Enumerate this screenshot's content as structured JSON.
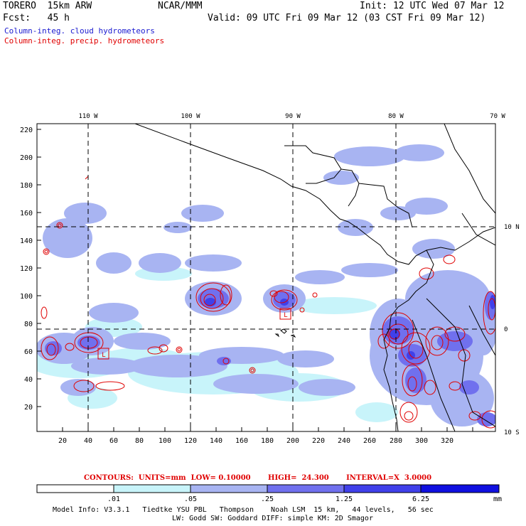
{
  "header": {
    "model": "TORERO  15km ARW",
    "center": "NCAR/MMM",
    "init": "Init: 12 UTC Wed 07 Mar 12",
    "fcst": "Fcst:   45 h",
    "valid": "Valid: 09 UTC Fri 09 Mar 12 (03 CST Fri 09 Mar 12)",
    "field1": "Column-integ. cloud hydrometeors",
    "field2": "Column-integ. precip. hydrometeors",
    "field1_color": "#1a1ad0",
    "field2_color": "#e00000"
  },
  "axes": {
    "x_ticks": [
      "20",
      "40",
      "60",
      "80",
      "100",
      "120",
      "140",
      "160",
      "180",
      "200",
      "220",
      "240",
      "260",
      "280",
      "300",
      "320"
    ],
    "y_ticks": [
      "20",
      "40",
      "60",
      "80",
      "100",
      "120",
      "140",
      "160",
      "180",
      "200",
      "220"
    ],
    "lon_labels": [
      "110 W",
      "100 W",
      "90 W",
      "80 W",
      "70 W"
    ],
    "lat_labels": [
      "10 N",
      "0",
      "10 S"
    ]
  },
  "contour_info": {
    "text": "CONTOURS:  UNITS=mm  LOW= 0.10000       HIGH=  24.300       INTERVAL=X  3.0000"
  },
  "colorbar": {
    "labels": [
      ".01",
      ".05",
      ".25",
      "1.25",
      "6.25"
    ],
    "unit": "mm",
    "colors": [
      "#ffffff",
      "#c8f4fa",
      "#a8b4f2",
      "#7070ee",
      "#4040ea",
      "#1010e0"
    ]
  },
  "footer": {
    "line1": "Model Info: V3.3.1   Tiedtke YSU PBL   Thompson    Noah LSM  15 km,   44 levels,   56 sec",
    "line2": "LW: Godd SW: Goddard DIFF: simple KM: 2D Smagor"
  },
  "map_labels": {
    "low_marker": "L"
  }
}
